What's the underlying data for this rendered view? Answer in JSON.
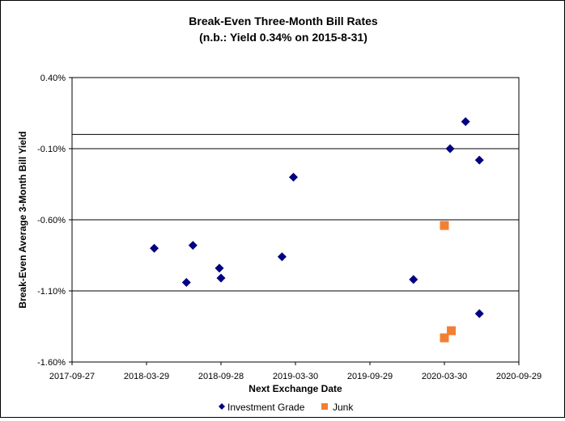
{
  "chart_data": {
    "type": "scatter",
    "title": "Break-Even Three-Month Bill Rates",
    "subtitle": "(n.b.: Yield 0.34% on 2015-8-31)",
    "xlabel": "Next Exchange Date",
    "ylabel": "Break-Even Average 3-Month Bill Yield",
    "x_ticks": [
      "2017-09-27",
      "2018-03-29",
      "2018-09-28",
      "2019-03-30",
      "2019-09-29",
      "2020-03-30",
      "2020-09-29"
    ],
    "y_ticks": [
      "0.40%",
      "-0.10%",
      "-0.60%",
      "-1.10%",
      "-1.60%"
    ],
    "xlim": [
      "2017-09-27",
      "2020-09-29"
    ],
    "ylim": [
      -1.6,
      0.4
    ],
    "y_gridlines": [
      -0.1,
      -0.6,
      -1.1
    ],
    "reference_line": 0.0,
    "legend_position": "bottom",
    "series": [
      {
        "name": "Investment Grade",
        "marker": "diamond",
        "color": "#000080",
        "points": [
          {
            "x": "2018-04-17",
            "y": -0.8
          },
          {
            "x": "2018-07-05",
            "y": -1.04
          },
          {
            "x": "2018-07-21",
            "y": -0.78
          },
          {
            "x": "2018-09-24",
            "y": -0.94
          },
          {
            "x": "2018-09-28",
            "y": -1.01
          },
          {
            "x": "2019-02-25",
            "y": -0.86
          },
          {
            "x": "2019-03-25",
            "y": -0.3
          },
          {
            "x": "2020-01-14",
            "y": -1.02
          },
          {
            "x": "2020-04-13",
            "y": -0.1
          },
          {
            "x": "2020-05-21",
            "y": 0.09
          },
          {
            "x": "2020-06-24",
            "y": -0.18
          },
          {
            "x": "2020-06-24",
            "y": -1.26
          }
        ]
      },
      {
        "name": "Junk",
        "marker": "square",
        "color": "#F28033",
        "points": [
          {
            "x": "2020-03-30",
            "y": -0.64
          },
          {
            "x": "2020-03-30",
            "y": -1.43
          },
          {
            "x": "2020-04-16",
            "y": -1.38
          }
        ]
      }
    ]
  }
}
